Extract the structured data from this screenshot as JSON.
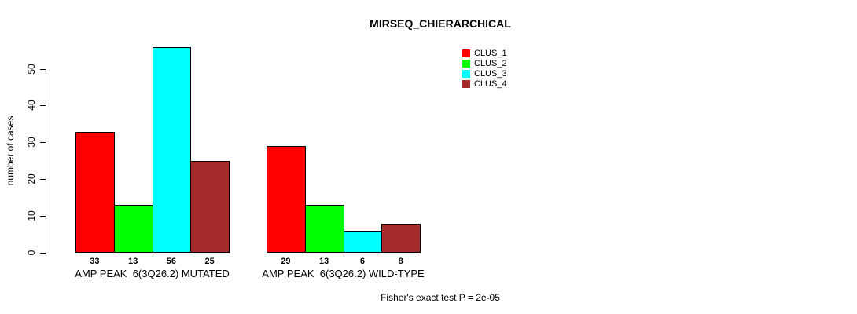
{
  "chart_data": {
    "type": "bar",
    "title": "MIRSEQ_CHIERARCHICAL",
    "xlabel": "",
    "ylabel": "number of cases",
    "categories": [
      "AMP PEAK  6(3Q26.2) MUTATED",
      "AMP PEAK  6(3Q26.2) WILD-TYPE"
    ],
    "series": [
      {
        "name": "CLUS_1",
        "color": "#FF0000",
        "values": [
          33,
          29
        ]
      },
      {
        "name": "CLUS_2",
        "color": "#00FF00",
        "values": [
          13,
          13
        ]
      },
      {
        "name": "CLUS_3",
        "color": "#00FFFF",
        "values": [
          56,
          6
        ]
      },
      {
        "name": "CLUS_4",
        "color": "#A52A2A",
        "values": [
          25,
          8
        ]
      }
    ],
    "yticks": [
      0,
      10,
      20,
      30,
      40,
      50
    ],
    "ylim": [
      0,
      56
    ],
    "grid": false,
    "legend_position": "top-right",
    "bar_value_labels_shown": true,
    "annotation": "Fisher's exact test P = 2e-05"
  }
}
